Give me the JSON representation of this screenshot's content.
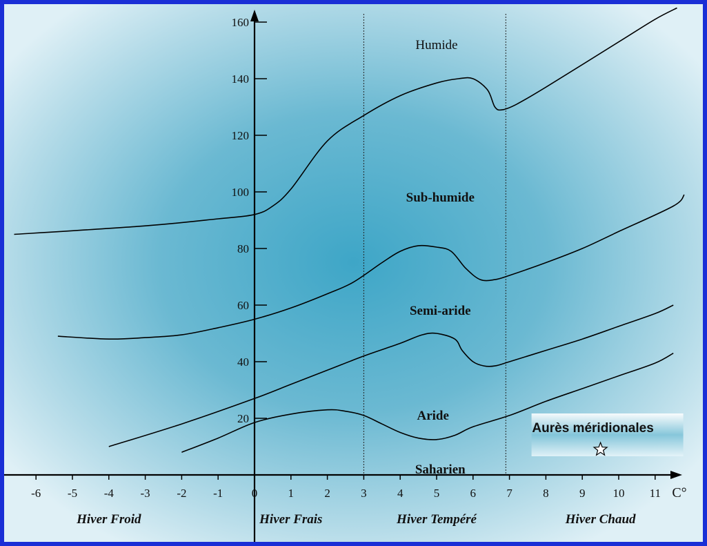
{
  "chart_data": {
    "type": "line",
    "x_unit": "C°",
    "xlim": [
      -6.6,
      11.6
    ],
    "ylim": [
      0,
      165
    ],
    "x_ticks": [
      "-6",
      "-5",
      "-4",
      "-3",
      "-2",
      "-1",
      "0",
      "1",
      "2",
      "3",
      "4",
      "5",
      "6",
      "7",
      "8",
      "9",
      "10",
      "11"
    ],
    "y_ticks": [
      "20",
      "40",
      "60",
      "80",
      "100",
      "120",
      "140",
      "160"
    ],
    "boundaries": [
      {
        "points": [
          [
            -6.6,
            85
          ],
          [
            -3,
            88
          ],
          [
            -1,
            90.5
          ],
          [
            0,
            92
          ],
          [
            0.5,
            95
          ],
          [
            1,
            101
          ],
          [
            2,
            118
          ],
          [
            3,
            127
          ],
          [
            4,
            134
          ],
          [
            5,
            138.5
          ],
          [
            5.6,
            140
          ],
          [
            6,
            140
          ],
          [
            6.4,
            136
          ],
          [
            6.6,
            130
          ],
          [
            6.8,
            129
          ],
          [
            7.2,
            131
          ],
          [
            8,
            137
          ],
          [
            10,
            153
          ],
          [
            11,
            161
          ],
          [
            11.6,
            165
          ]
        ]
      },
      {
        "points": [
          [
            -5.4,
            49
          ],
          [
            -4,
            48
          ],
          [
            -3,
            48.5
          ],
          [
            -2,
            49.5
          ],
          [
            -1,
            52
          ],
          [
            0,
            55
          ],
          [
            1,
            59
          ],
          [
            2,
            64
          ],
          [
            2.7,
            68
          ],
          [
            3.5,
            75
          ],
          [
            4,
            79
          ],
          [
            4.5,
            81
          ],
          [
            5,
            80.5
          ],
          [
            5.4,
            79
          ],
          [
            5.8,
            73
          ],
          [
            6.2,
            69
          ],
          [
            6.6,
            69
          ],
          [
            7,
            70.5
          ],
          [
            8,
            75
          ],
          [
            9,
            80
          ],
          [
            10,
            86
          ],
          [
            11.5,
            95
          ],
          [
            11.8,
            99
          ]
        ]
      },
      {
        "points": [
          [
            -4,
            10
          ],
          [
            -2,
            18
          ],
          [
            0,
            27
          ],
          [
            1,
            32
          ],
          [
            2,
            37
          ],
          [
            3,
            42
          ],
          [
            4,
            46.5
          ],
          [
            4.6,
            49.5
          ],
          [
            5,
            50
          ],
          [
            5.5,
            48
          ],
          [
            5.7,
            44
          ],
          [
            6,
            40
          ],
          [
            6.3,
            38.5
          ],
          [
            6.6,
            38.5
          ],
          [
            7,
            40
          ],
          [
            8,
            44
          ],
          [
            9,
            48
          ],
          [
            10,
            52.5
          ],
          [
            11,
            57
          ],
          [
            11.5,
            60
          ]
        ]
      },
      {
        "points": [
          [
            -2,
            8
          ],
          [
            -1,
            13
          ],
          [
            0,
            18.5
          ],
          [
            1,
            21.5
          ],
          [
            2,
            23
          ],
          [
            2.5,
            22.5
          ],
          [
            3,
            21
          ],
          [
            3.5,
            18
          ],
          [
            4,
            15
          ],
          [
            4.5,
            13
          ],
          [
            5,
            12.5
          ],
          [
            5.5,
            14
          ],
          [
            6,
            17
          ],
          [
            7,
            21
          ],
          [
            8,
            26
          ],
          [
            9,
            30.5
          ],
          [
            10,
            35
          ],
          [
            11,
            39.5
          ],
          [
            11.5,
            43
          ]
        ]
      }
    ],
    "dividers_x": [
      3,
      6.9
    ],
    "zones": [
      {
        "label": "Humide",
        "x": 5,
        "y": 152,
        "bold": false
      },
      {
        "label": "Sub-humide",
        "x": 5.1,
        "y": 98,
        "bold": true
      },
      {
        "label": "Semi-aride",
        "x": 5.1,
        "y": 58,
        "bold": true
      },
      {
        "label": "Aride",
        "x": 4.9,
        "y": 21,
        "bold": true
      },
      {
        "label": "Saharien",
        "x": 5.1,
        "y": 2,
        "bold": true
      }
    ],
    "winters": [
      {
        "label": "Hiver Froid",
        "x": -4
      },
      {
        "label": "Hiver Frais",
        "x": 1
      },
      {
        "label": "Hiver Tempéré",
        "x": 5
      },
      {
        "label": "Hiver Chaud",
        "x": 9.5
      }
    ],
    "station": {
      "label": "Aurès méridionales",
      "x": 9.5,
      "y": 9
    }
  }
}
